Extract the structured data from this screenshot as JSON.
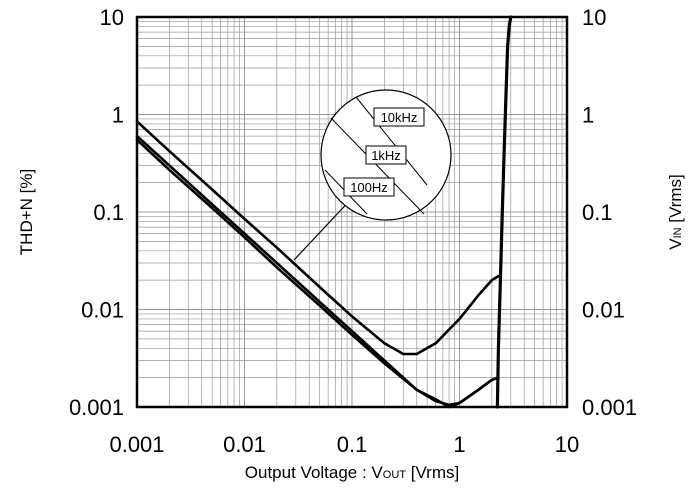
{
  "chart_data": {
    "type": "line",
    "xscale": "log",
    "yscale": "log",
    "xlim": [
      0.001,
      10
    ],
    "ylim": [
      0.001,
      10
    ],
    "grid": true,
    "x_ticks": [
      "0.001",
      "0.01",
      "0.1",
      "1",
      "10"
    ],
    "y_ticks": [
      "10",
      "1",
      "0.1",
      "0.01",
      "0.001"
    ],
    "y2_ticks": [
      "10",
      "1",
      "0.1",
      "0.01",
      "0.001"
    ],
    "xlabel": "Output Voltage : V",
    "xlabel_sub": "OUT",
    "xlabel_unit": " [Vrms]",
    "ylabel": "THD+N [%]",
    "y2label": "V",
    "y2label_sub": "IN",
    "y2label_unit": " [Vrms]",
    "series": [
      {
        "name": "10kHz",
        "x": [
          0.001,
          0.002,
          0.005,
          0.01,
          0.02,
          0.05,
          0.1,
          0.2,
          0.3,
          0.4,
          0.6,
          1.0,
          1.5,
          2.0,
          2.3
        ],
        "y": [
          0.85,
          0.42,
          0.17,
          0.085,
          0.043,
          0.017,
          0.0085,
          0.0045,
          0.0035,
          0.0035,
          0.0045,
          0.008,
          0.014,
          0.02,
          0.022
        ]
      },
      {
        "name": "1kHz",
        "x": [
          0.001,
          0.002,
          0.005,
          0.01,
          0.02,
          0.05,
          0.1,
          0.2,
          0.4,
          0.6,
          0.8,
          1.0,
          1.5,
          2.0,
          2.3
        ],
        "y": [
          0.6,
          0.3,
          0.12,
          0.06,
          0.03,
          0.012,
          0.006,
          0.003,
          0.0015,
          0.00115,
          0.00105,
          0.0011,
          0.0015,
          0.0019,
          0.002
        ]
      },
      {
        "name": "100Hz",
        "x": [
          0.001,
          0.002,
          0.005,
          0.01,
          0.02,
          0.05,
          0.1,
          0.2,
          0.4,
          0.6,
          0.8,
          1.0,
          1.5,
          2.0,
          2.3
        ],
        "y": [
          0.55,
          0.27,
          0.11,
          0.055,
          0.027,
          0.011,
          0.0055,
          0.0028,
          0.0015,
          0.0012,
          0.001,
          0.0011,
          0.0015,
          0.0019,
          0.002
        ]
      },
      {
        "name": "V_IN",
        "x": [
          2.25,
          2.3,
          2.4,
          2.5,
          2.6,
          2.7,
          2.8,
          2.9,
          3.0
        ],
        "y": [
          0.001,
          0.004,
          0.02,
          0.1,
          0.4,
          1.5,
          5,
          8,
          10
        ]
      }
    ],
    "legend": {
      "placement": "callout",
      "entries": [
        "10kHz",
        "1kHz",
        "100Hz"
      ]
    }
  },
  "colors": {
    "line": "#000000",
    "grid": "#999999",
    "background": "#ffffff"
  }
}
